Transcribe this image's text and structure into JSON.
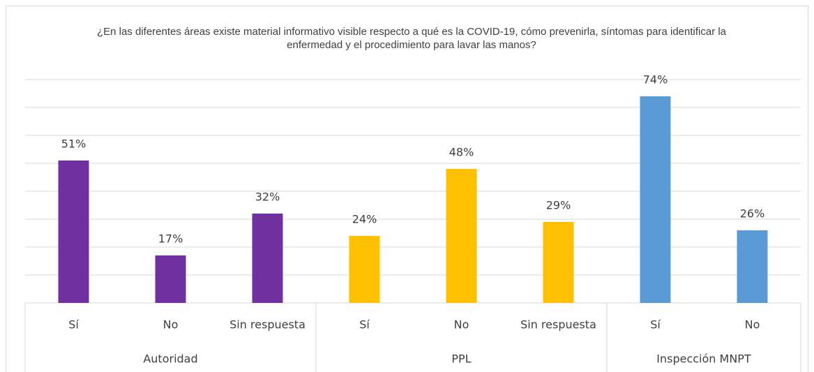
{
  "chart_data": {
    "type": "bar",
    "title": "¿En las diferentes áreas existe material informativo visible respecto a qué es la COVID-19, cómo prevenirla, síntomas para identificar la enfermedad y el procedimiento para lavar las manos?",
    "series": [
      {
        "name": "Autoridad",
        "color": "#7030a0",
        "categories": [
          "Sí",
          "No",
          "Sin respuesta"
        ],
        "values": [
          51,
          17,
          32
        ],
        "value_labels": [
          "51%",
          "17%",
          "32%"
        ]
      },
      {
        "name": "PPL",
        "color": "#ffc000",
        "categories": [
          "Sí",
          "No",
          "Sin respuesta"
        ],
        "values": [
          24,
          48,
          29
        ],
        "value_labels": [
          "24%",
          "48%",
          "29%"
        ]
      },
      {
        "name": "Inspección MNPT",
        "color": "#5b9bd5",
        "categories": [
          "Sí",
          "No"
        ],
        "values": [
          74,
          26
        ],
        "value_labels": [
          "74%",
          "26%"
        ]
      }
    ],
    "ylim": [
      0,
      80
    ],
    "yticks": [
      0,
      10,
      20,
      30,
      40,
      50,
      60,
      70,
      80
    ],
    "grid": true
  }
}
